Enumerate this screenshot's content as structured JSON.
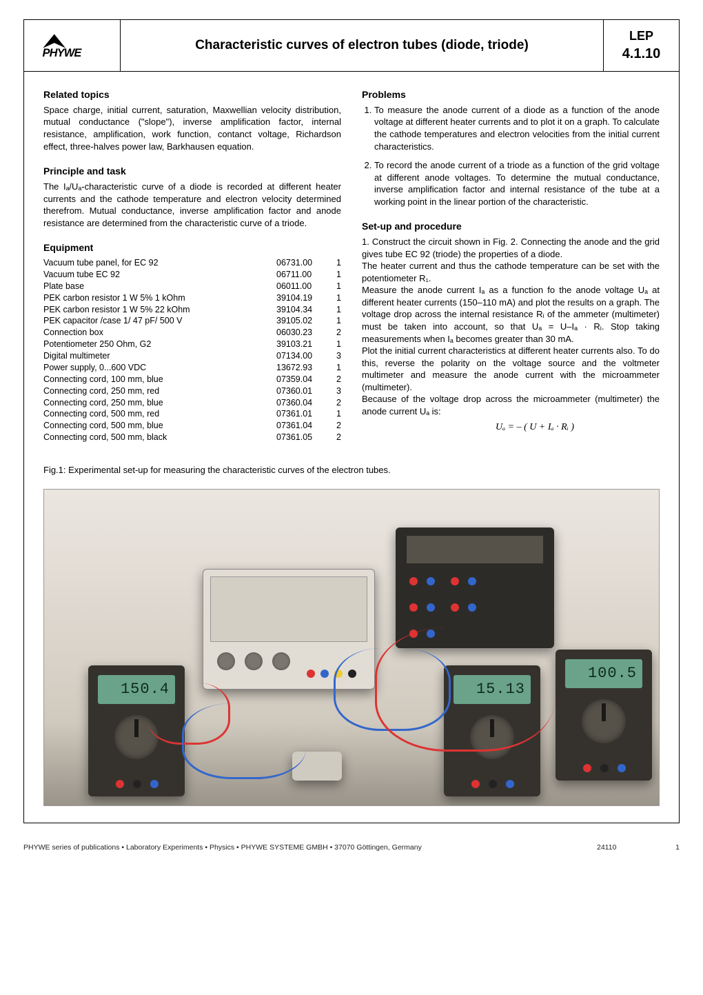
{
  "header": {
    "title": "Characteristic curves of electron tubes (diode, triode)",
    "code_line1": "LEP",
    "code_line2": "4.1.10"
  },
  "related_topics": {
    "heading": "Related topics",
    "text": "Space charge, initial current, saturation, Maxwellian velocity distribution, mutual conductance (\"slope\"), inverse amplification factor, internal resistance, amplification, work function, contanct voltage, Richardson effect, three-halves power law, Barkhausen equation."
  },
  "principle": {
    "heading": "Principle and task",
    "text": "The Iₐ/Uₐ-characteristic curve of a diode is recorded at different heater currents and the cathode temperature and electron velocity determined therefrom. Mutual conductance, inverse amplification factor and anode resistance are determined from the characteristic curve of a triode."
  },
  "equipment": {
    "heading": "Equipment",
    "rows": [
      {
        "name": "Vacuum tube panel, for EC 92",
        "code": "06731.00",
        "qty": "1"
      },
      {
        "name": "Vacuum tube EC 92",
        "code": "06711.00",
        "qty": "1"
      },
      {
        "name": "Plate base",
        "code": "06011.00",
        "qty": "1"
      },
      {
        "name": "PEK carbon resistor 1 W 5%   1 kOhm",
        "code": "39104.19",
        "qty": "1"
      },
      {
        "name": "PEK carbon resistor 1 W 5% 22 kOhm",
        "code": "39104.34",
        "qty": "1"
      },
      {
        "name": "PEK capacitor /case 1/ 47 pF/ 500 V",
        "code": "39105.02",
        "qty": "1"
      },
      {
        "name": "Connection box",
        "code": "06030.23",
        "qty": "2"
      },
      {
        "name": "Potentiometer 250 Ohm, G2",
        "code": "39103.21",
        "qty": "1"
      },
      {
        "name": "Digital multimeter",
        "code": "07134.00",
        "qty": "3"
      },
      {
        "name": "Power supply, 0...600 VDC",
        "code": "13672.93",
        "qty": "1"
      },
      {
        "name": "Connecting cord, 100 mm, blue",
        "code": "07359.04",
        "qty": "2"
      },
      {
        "name": "Connecting cord, 250 mm, red",
        "code": "07360.01",
        "qty": "3"
      },
      {
        "name": "Connecting cord, 250 mm, blue",
        "code": "07360.04",
        "qty": "2"
      },
      {
        "name": "Connecting cord, 500 mm, red",
        "code": "07361.01",
        "qty": "1"
      },
      {
        "name": "Connecting cord, 500 mm, blue",
        "code": "07361.04",
        "qty": "2"
      },
      {
        "name": "Connecting cord, 500 mm, black",
        "code": "07361.05",
        "qty": "2"
      }
    ]
  },
  "problems": {
    "heading": "Problems",
    "items": [
      "To measure the anode current of a diode as a function of the anode voltage at different heater currents and to plot it on a graph. To calculate the cathode temperatures and electron velocities from the initial current characteristics.",
      "To record the anode current of a triode as a function of the grid voltage at different anode voltages. To determine the mutual conductance, inverse amplification factor and internal resistance of the tube at a working point in the linear portion of the characteristic."
    ]
  },
  "setup": {
    "heading": "Set-up and procedure",
    "p1": "1. Construct the circuit shown in Fig. 2. Connecting the anode and the grid gives tube EC 92 (triode) the properties of a diode.",
    "p2": "The heater current and thus the cathode temperature can be set with the potentiometer R₁.",
    "p3": "Measure the anode current Iₐ as a function fo the anode voltage Uₐ at different heater currents (150–110 mA) and plot the results on a graph. The voltage drop across the internal resistance Rᵢ of the ammeter (multimeter) must be taken into account, so that Uₐ = U–Iₐ · Rᵢ. Stop taking measurements when Iₐ becomes greater than 30 mA.",
    "p4": "Plot the initial current characteristics at different heater currents also. To do this, reverse the polarity on the voltage source and the voltmeter multimeter and measure the anode current with the microammeter (multimeter).",
    "p5": "Because of the voltage drop across the microammeter (multimeter) the anode current Uₐ is:",
    "formula": "Uₐ = – (  U   +   Iₐ · Rᵢ  )"
  },
  "figure": {
    "caption": "Fig.1: Experimental set-up for measuring the characteristic curves of the electron tubes.",
    "mm1_reading": "150.4",
    "mm2_reading": "15.13",
    "mm3_reading": "100.5"
  },
  "footer": {
    "publisher": "PHYWE series of publications • Laboratory Experiments • Physics • PHYWE SYSTEME GMBH • 37070 Göttingen, Germany",
    "code": "24110",
    "page": "1"
  },
  "colors": {
    "border": "#000000",
    "text": "#000000",
    "photo_bg_top": "#ebe6e0",
    "photo_bg_bottom": "#c4bdb0",
    "lcd": "#6aa38a"
  }
}
